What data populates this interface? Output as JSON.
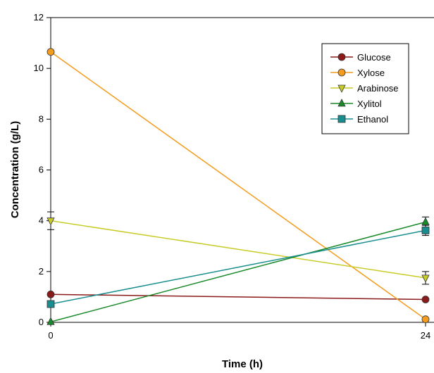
{
  "chart_data": {
    "type": "line",
    "xlabel": "Time (h)",
    "ylabel": "Concentration (g/L)",
    "xlim": [
      0,
      24
    ],
    "ylim": [
      0,
      12
    ],
    "x_ticks": [
      "0",
      "24"
    ],
    "y_ticks": [
      "0",
      "2",
      "4",
      "6",
      "8",
      "10",
      "12"
    ],
    "x": [
      0,
      24
    ],
    "legend_position": "top-right",
    "grid": false,
    "series": [
      {
        "name": "Glucose",
        "values": [
          1.1,
          0.9
        ],
        "color": "#8b1a1a",
        "marker": "circle",
        "errors": [
          0,
          0
        ]
      },
      {
        "name": "Xylose",
        "values": [
          10.65,
          0.12
        ],
        "color": "#f39c1e",
        "marker": "circle",
        "errors": [
          0,
          0
        ]
      },
      {
        "name": "Arabinose",
        "values": [
          4.0,
          1.75
        ],
        "color": "#c8cc28",
        "marker": "triangle-down",
        "errors": [
          0.35,
          0.25
        ]
      },
      {
        "name": "Xylitol",
        "values": [
          0.02,
          3.95
        ],
        "color": "#1a8a2a",
        "marker": "triangle-up",
        "errors": [
          0,
          0.2
        ]
      },
      {
        "name": "Ethanol",
        "values": [
          0.72,
          3.62
        ],
        "color": "#1a8e8e",
        "marker": "square",
        "errors": [
          0,
          0.2
        ]
      }
    ]
  }
}
